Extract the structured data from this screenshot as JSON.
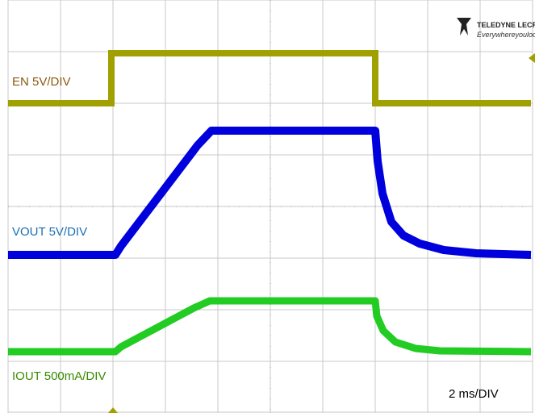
{
  "logo": {
    "brand": "TELEDYNE LECROY",
    "tagline": "Everywhereyoulook"
  },
  "channels": [
    {
      "label": "EN 5V/DIV"
    },
    {
      "label": "VOUT 5V/DIV"
    },
    {
      "label": "IOUT 500mA/DIV"
    }
  ],
  "timebase": "2 ms/DIV"
}
